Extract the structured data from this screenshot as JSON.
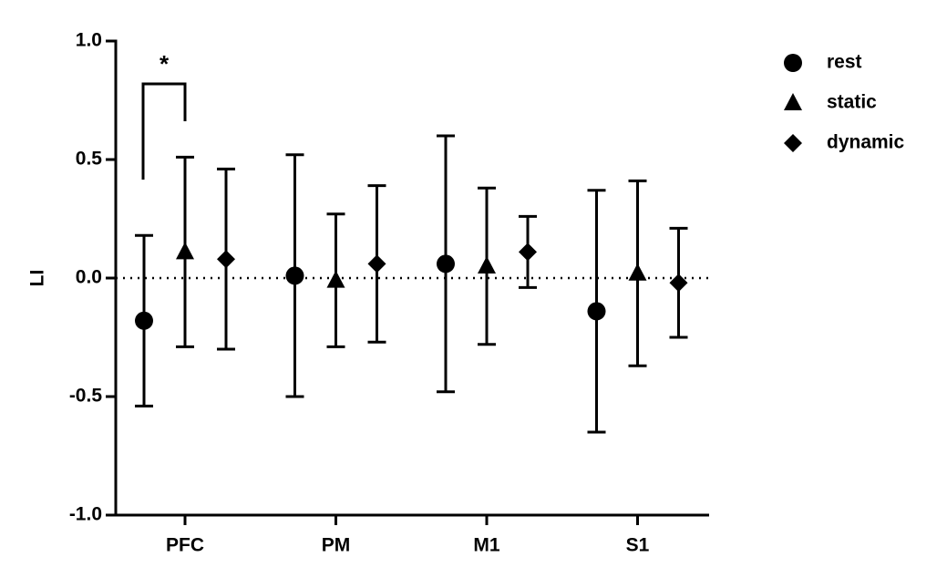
{
  "chart_data": {
    "type": "errorbar-dot",
    "y_label": "LI",
    "categories": [
      "PFC",
      "PM",
      "M1",
      "S1"
    ],
    "series": [
      {
        "name": "rest",
        "marker": "circle",
        "color": "#000000",
        "values": [
          -0.18,
          0.01,
          0.06,
          -0.14
        ],
        "errors": [
          0.36,
          0.51,
          0.54,
          0.51
        ]
      },
      {
        "name": "static",
        "marker": "triangle",
        "color": "#000000",
        "values": [
          0.11,
          -0.01,
          0.05,
          0.02
        ],
        "errors": [
          0.4,
          0.28,
          0.33,
          0.39
        ]
      },
      {
        "name": "dynamic",
        "marker": "diamond",
        "color": "#000000",
        "values": [
          0.08,
          0.06,
          0.11,
          -0.02
        ],
        "errors": [
          0.38,
          0.33,
          0.15,
          0.23
        ]
      }
    ],
    "ylim": [
      -1.0,
      1.0
    ],
    "yticks": [
      {
        "value": -1.0,
        "label": "-1.0"
      },
      -0.5,
      {
        "value": 0.0,
        "label": "0.0"
      },
      0.5,
      {
        "value": 1.0,
        "label": "1.0"
      }
    ],
    "zero_line": "dotted",
    "legend": "top-right",
    "annotations": [
      {
        "text": "*"
      }
    ]
  }
}
